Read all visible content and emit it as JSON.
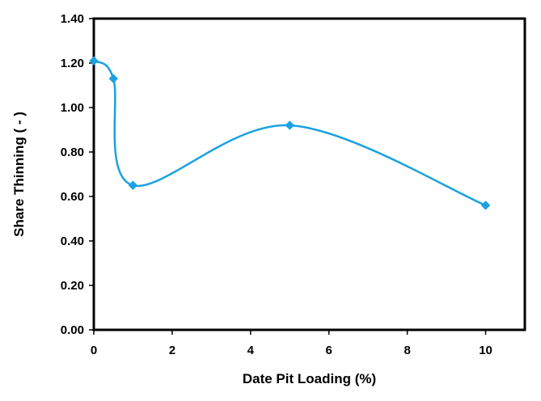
{
  "chart_data": {
    "type": "line",
    "title": "",
    "xlabel": "Date Pit Loading (%)",
    "ylabel": "Share Thinning ( - )",
    "xlim": [
      0,
      11
    ],
    "ylim": [
      0,
      1.4
    ],
    "x_ticks": [
      0,
      2,
      4,
      6,
      8,
      10
    ],
    "y_ticks": [
      "0.00",
      "0.20",
      "0.40",
      "0.60",
      "0.80",
      "1.00",
      "1.20",
      "1.40"
    ],
    "grid": false,
    "legend": "none",
    "smooth": true,
    "series": [
      {
        "color": "#1ba1e2",
        "marker": "diamond",
        "x": [
          0,
          0.5,
          1,
          5,
          10
        ],
        "y": [
          1.21,
          1.13,
          0.65,
          0.92,
          0.56
        ]
      }
    ]
  }
}
